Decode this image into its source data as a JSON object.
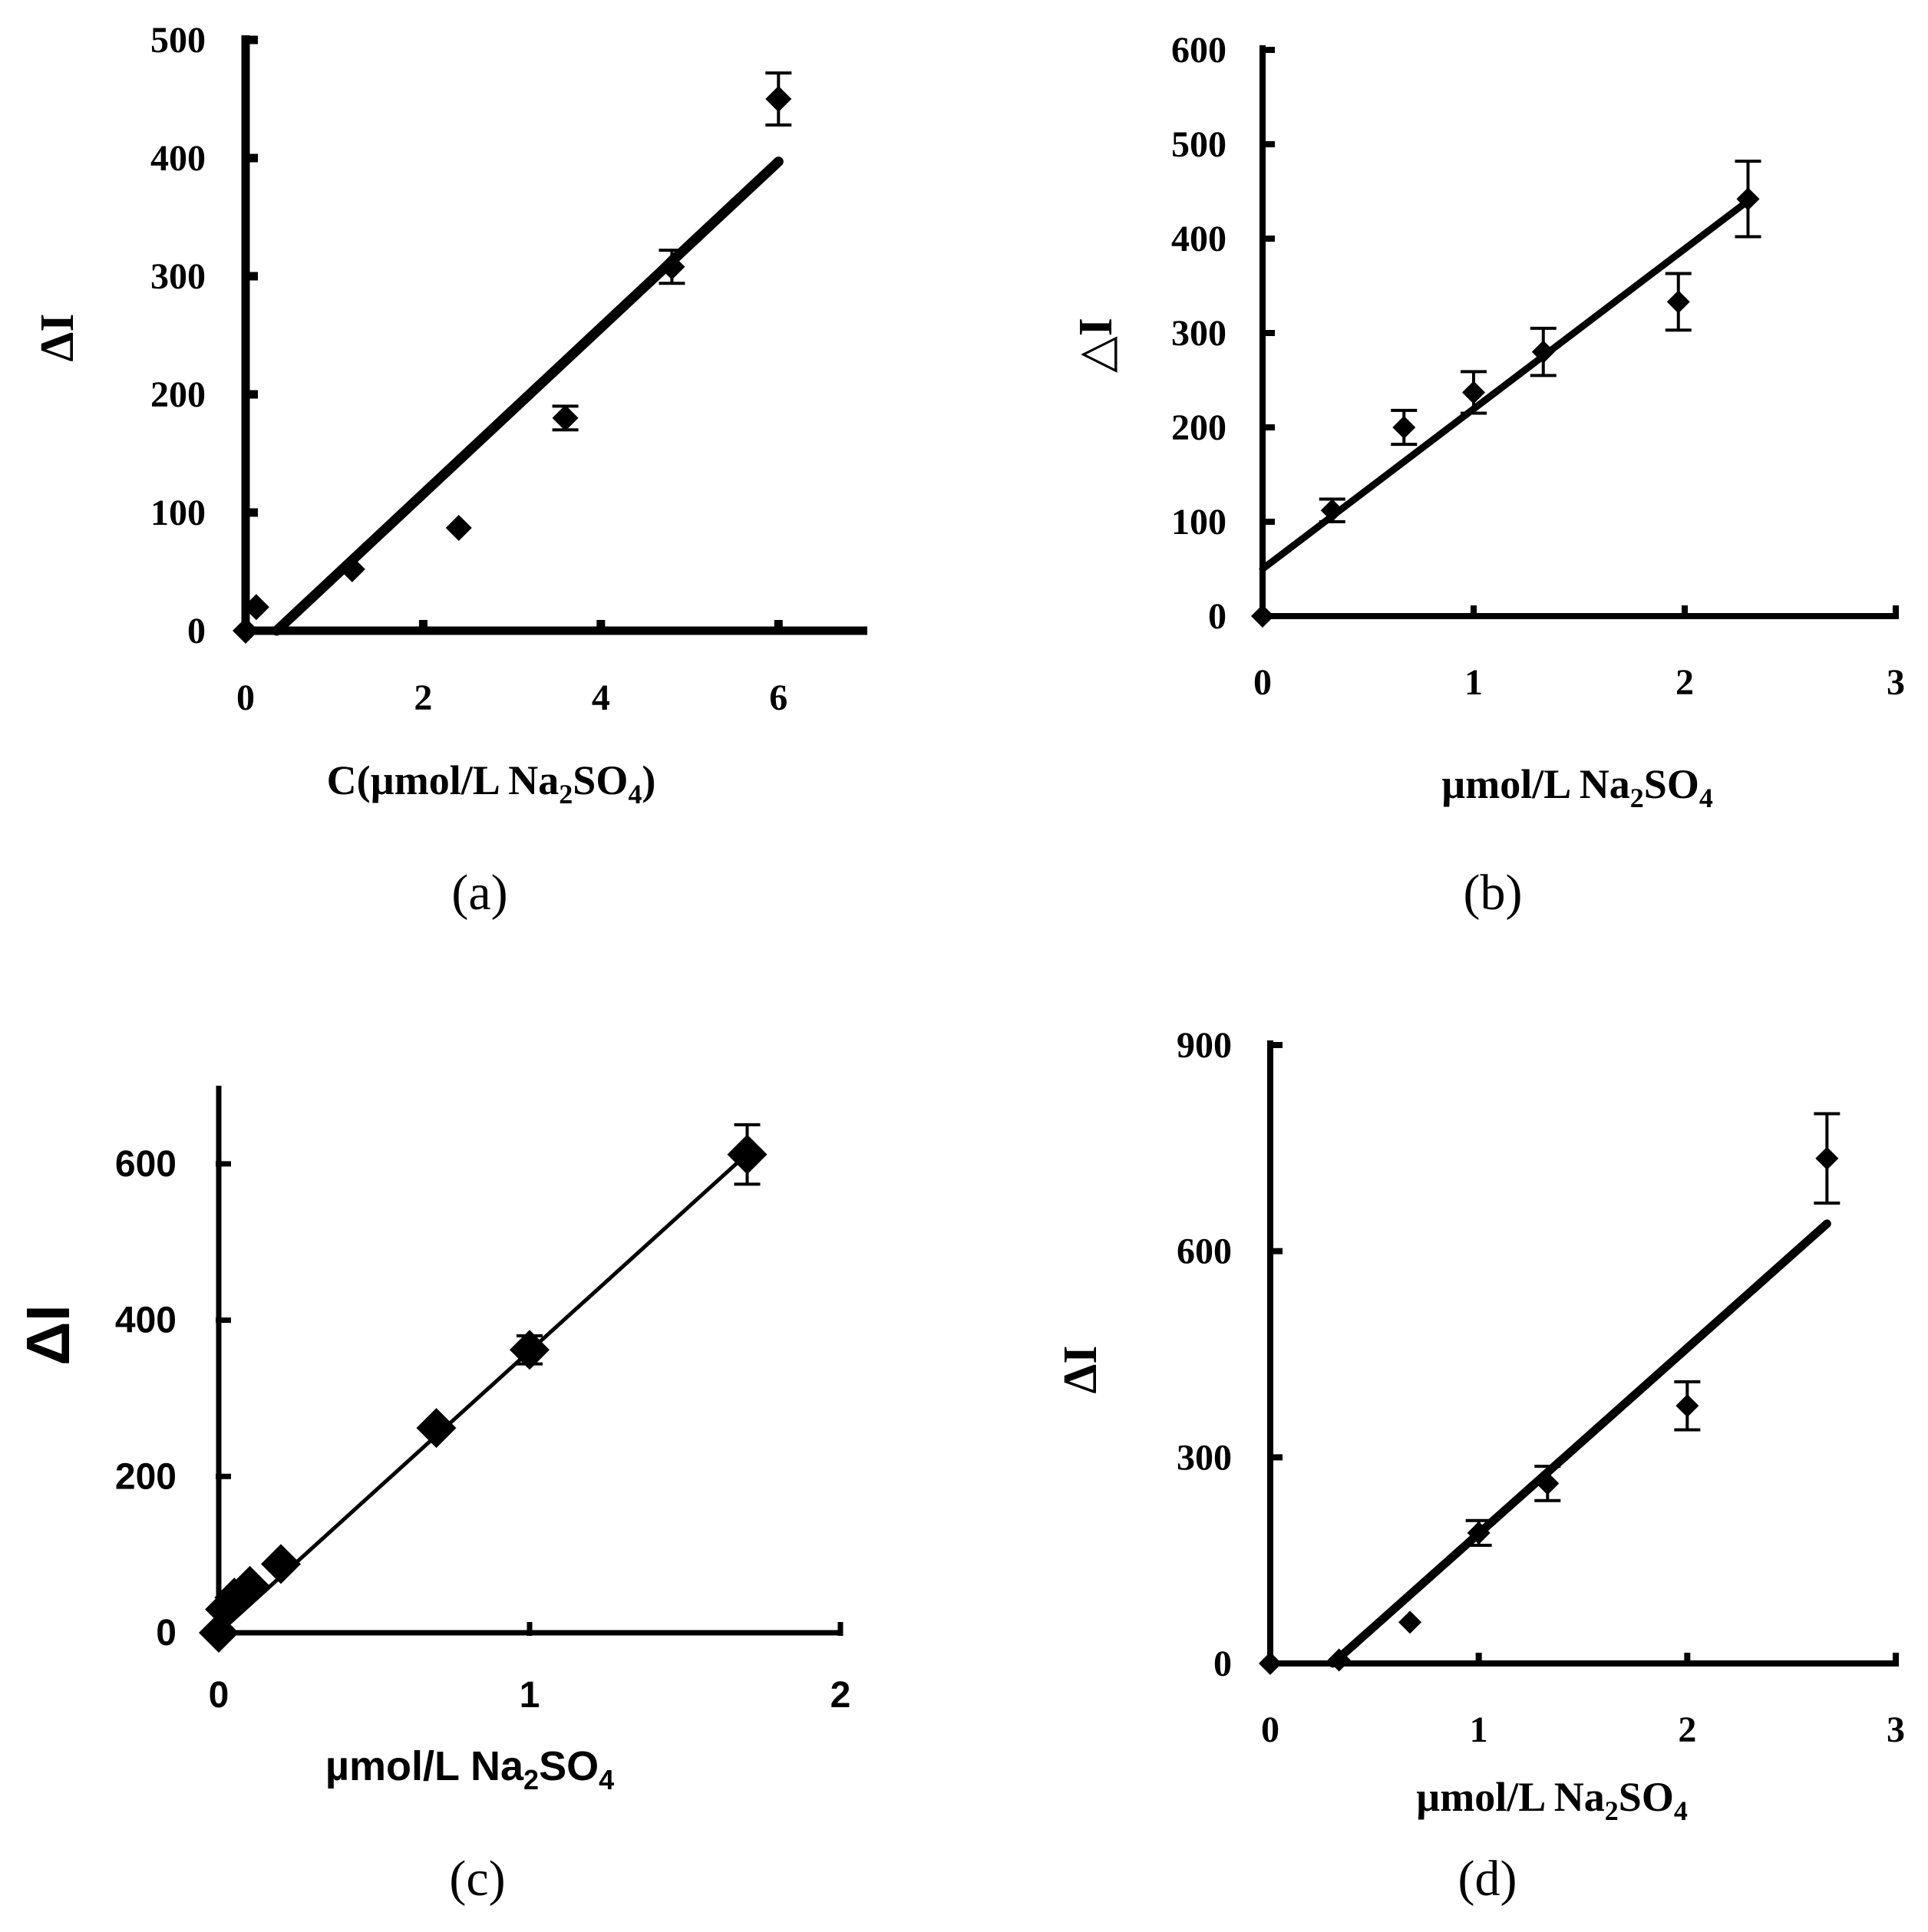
{
  "chart_data": [
    {
      "id": "a",
      "type": "scatter",
      "panel_label": "(a)",
      "xlabel": {
        "prefix": "C(µmol/L Na",
        "sub1": "2",
        "mid": "SO",
        "sub2": "4",
        "suffix": ")"
      },
      "ylabel": "ΔI",
      "xlim": [
        0,
        7
      ],
      "ylim": [
        0,
        500
      ],
      "xticks": [
        "0",
        "2",
        "4",
        "6"
      ],
      "xtick_values": [
        0,
        2,
        4,
        6
      ],
      "yticks": [
        "0",
        "100",
        "200",
        "300",
        "400",
        "500"
      ],
      "ytick_values": [
        0,
        100,
        200,
        300,
        400,
        500
      ],
      "x": [
        0,
        0.12,
        1.2,
        2.4,
        3.6,
        4.8,
        6.0
      ],
      "y": [
        0,
        20,
        52,
        87,
        180,
        308,
        450
      ],
      "err": [
        0,
        0,
        0,
        0,
        10,
        14,
        22
      ],
      "fit": {
        "x": [
          0.35,
          6.0
        ],
        "y": [
          0,
          397
        ]
      }
    },
    {
      "id": "b",
      "type": "scatter",
      "panel_label": "(b)",
      "xlabel": {
        "prefix": "µmol/L Na",
        "sub1": "2",
        "mid": "SO",
        "sub2": "4",
        "suffix": ""
      },
      "ylabel": "△I",
      "xlim": [
        0,
        3
      ],
      "ylim": [
        0,
        600
      ],
      "xticks": [
        "0",
        "1",
        "2",
        "3"
      ],
      "xtick_values": [
        0,
        1,
        2,
        3
      ],
      "yticks": [
        "0",
        "100",
        "200",
        "300",
        "400",
        "500",
        "600"
      ],
      "ytick_values": [
        0,
        100,
        200,
        300,
        400,
        500,
        600
      ],
      "x": [
        0,
        0.33,
        0.67,
        1.0,
        1.33,
        1.97,
        2.3
      ],
      "y": [
        0,
        112,
        200,
        237,
        280,
        333,
        442
      ],
      "err": [
        0,
        12,
        18,
        22,
        25,
        30,
        40
      ],
      "fit": {
        "x": [
          0,
          2.3
        ],
        "y": [
          50,
          440
        ]
      }
    },
    {
      "id": "c",
      "type": "scatter",
      "panel_label": "(c)",
      "xlabel": {
        "prefix": "µmol/L Na",
        "sub1": "2",
        "mid": "SO",
        "sub2": "4",
        "suffix": ""
      },
      "ylabel": "ΔI",
      "xlim": [
        0,
        2
      ],
      "ylim": [
        0,
        700
      ],
      "xticks": [
        "0",
        "1",
        "2"
      ],
      "xtick_values": [
        0,
        1,
        2
      ],
      "yticks": [
        "0",
        "200",
        "400",
        "600"
      ],
      "ytick_values": [
        0,
        200,
        400,
        600
      ],
      "x": [
        0,
        0.02,
        0.05,
        0.1,
        0.2,
        0.7,
        1.0,
        1.7
      ],
      "y": [
        0,
        30,
        45,
        60,
        88,
        262,
        362,
        612
      ],
      "err": [
        0,
        0,
        0,
        0,
        0,
        0,
        18,
        38
      ],
      "fit": {
        "x": [
          0,
          1.72
        ],
        "y": [
          0,
          620
        ]
      }
    },
    {
      "id": "d",
      "type": "scatter",
      "panel_label": "(d)",
      "xlabel": {
        "prefix": "µmol/L Na",
        "sub1": "2",
        "mid": "SO",
        "sub2": "4",
        "suffix": ""
      },
      "ylabel": "ΔI",
      "xlim": [
        0,
        3
      ],
      "ylim": [
        0,
        900
      ],
      "xticks": [
        "0",
        "1",
        "2",
        "3"
      ],
      "xtick_values": [
        0,
        1,
        2,
        3
      ],
      "yticks": [
        "0",
        "300",
        "600",
        "900"
      ],
      "ytick_values": [
        0,
        300,
        600,
        900
      ],
      "x": [
        0,
        0.33,
        0.67,
        1.0,
        1.33,
        2.0,
        2.67
      ],
      "y": [
        0,
        5,
        60,
        190,
        262,
        375,
        735
      ],
      "err": [
        0,
        0,
        0,
        18,
        25,
        35,
        65
      ],
      "fit": {
        "x": [
          0.3,
          2.67
        ],
        "y": [
          0,
          640
        ]
      }
    }
  ]
}
